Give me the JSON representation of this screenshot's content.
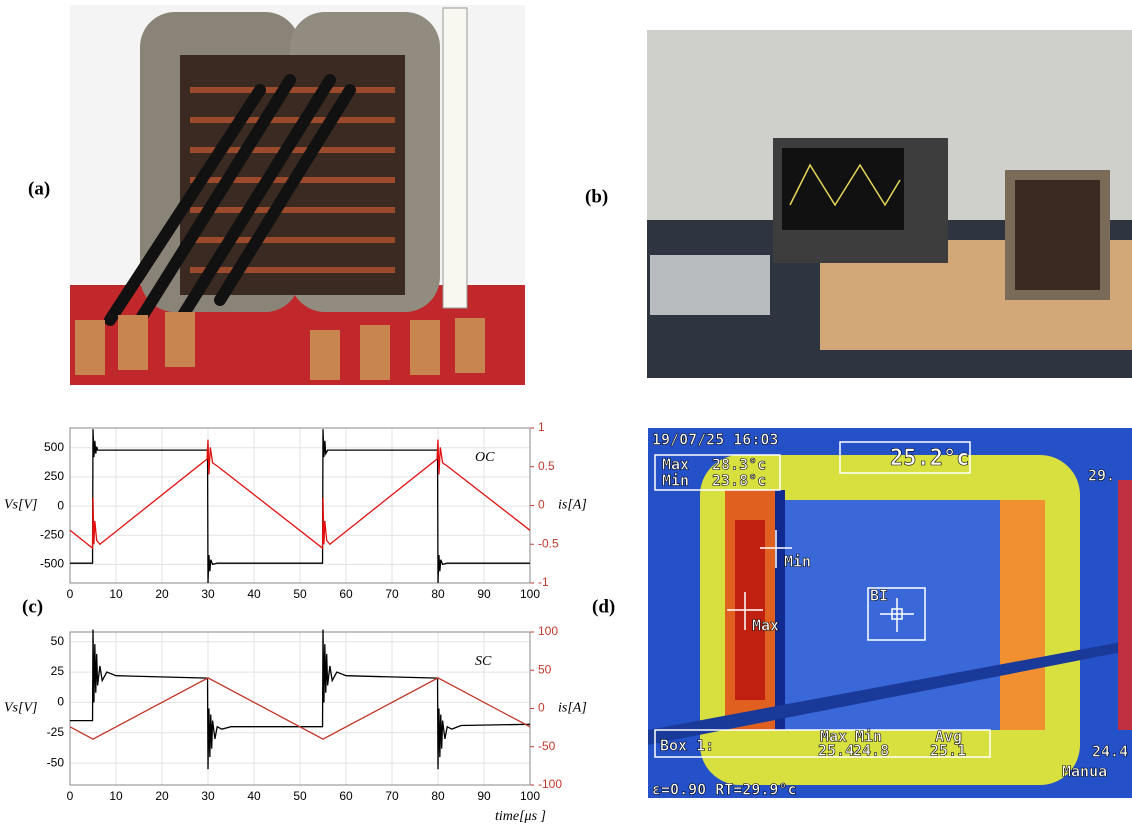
{
  "panels": {
    "a": "(a)",
    "b": "(b)",
    "c": "(c)",
    "d": "(d)"
  },
  "chart_data": [
    {
      "type": "line",
      "annotation": "OC",
      "y_label": "Vs[V]",
      "y2_label": "is[A]",
      "xlim": [
        0,
        100
      ],
      "xticks": [
        0,
        10,
        20,
        30,
        40,
        50,
        60,
        70,
        80,
        90,
        100
      ],
      "ylim": [
        -660,
        670
      ],
      "yticks": [
        500,
        250,
        0,
        -250,
        -500
      ],
      "y2lim": [
        -1,
        1
      ],
      "y2ticks": [
        1,
        0.5,
        0,
        -0.5,
        -1
      ],
      "y2color": "#c0392b",
      "grid": true,
      "series": [
        {
          "color": "#000000",
          "x": [
            0,
            4.9,
            5,
            5.2,
            5.4,
            5.6,
            5.8,
            6,
            7,
            29.9,
            30,
            30.2,
            30.4,
            30.6,
            31,
            32,
            54.9,
            55,
            55.2,
            55.4,
            55.6,
            56,
            57,
            79.9,
            80,
            80.2,
            80.4,
            80.6,
            81,
            82,
            100
          ],
          "values": [
            -490,
            -490,
            660,
            420,
            560,
            450,
            510,
            480,
            480,
            480,
            -660,
            -420,
            -560,
            -460,
            -500,
            -490,
            -490,
            660,
            420,
            560,
            450,
            480,
            480,
            480,
            -660,
            -420,
            -560,
            -460,
            -500,
            -490,
            -490
          ]
        },
        {
          "color": "#e01010",
          "axis": "y2",
          "x": [
            0,
            4.9,
            5,
            5.2,
            5.4,
            5.8,
            6.5,
            29.8,
            30,
            30.2,
            30.5,
            31,
            32,
            54.9,
            55,
            55.2,
            55.4,
            55.8,
            56.5,
            79.8,
            80,
            80.2,
            80.5,
            81,
            82,
            100
          ],
          "values": [
            -0.32,
            -0.55,
            0.1,
            -0.5,
            -0.2,
            -0.45,
            -0.5,
            0.6,
            0.85,
            0.4,
            0.75,
            0.55,
            0.51,
            -0.55,
            0.1,
            -0.5,
            -0.2,
            -0.45,
            -0.5,
            0.6,
            0.85,
            0.4,
            0.75,
            0.55,
            0.51,
            -0.32
          ]
        }
      ]
    },
    {
      "type": "line",
      "annotation": "SC",
      "y_label": "Vs[V]",
      "y2_label": "is[A]",
      "x_label": "time[μs ]",
      "xlim": [
        0,
        100
      ],
      "xticks": [
        0,
        10,
        20,
        30,
        40,
        50,
        60,
        70,
        80,
        90,
        100
      ],
      "ylim": [
        -68,
        58
      ],
      "yticks": [
        50,
        25,
        0,
        -25,
        -50
      ],
      "y2lim": [
        -100,
        100
      ],
      "y2ticks": [
        100,
        50,
        0,
        -50,
        -100
      ],
      "y2color": "#c0392b",
      "grid": true,
      "series": [
        {
          "color": "#000000",
          "x": [
            0,
            4.9,
            5,
            5.2,
            5.4,
            5.6,
            5.8,
            6,
            6.5,
            7,
            8,
            10,
            29.9,
            30,
            30.2,
            30.4,
            30.6,
            30.8,
            31,
            31.5,
            32,
            33,
            35,
            54.9,
            55,
            55.2,
            55.4,
            55.6,
            55.8,
            56,
            56.5,
            57,
            58,
            60,
            79.9,
            80,
            80.2,
            80.4,
            80.6,
            80.8,
            81,
            81.5,
            82,
            83,
            85,
            100
          ],
          "values": [
            -15,
            -15,
            60,
            0,
            48,
            8,
            40,
            14,
            30,
            18,
            25,
            22,
            20,
            -55,
            -5,
            -45,
            -10,
            -38,
            -15,
            -30,
            -20,
            -22,
            -20,
            -20,
            60,
            0,
            48,
            8,
            40,
            14,
            30,
            18,
            25,
            22,
            20,
            -55,
            -5,
            -45,
            -10,
            -38,
            -15,
            -30,
            -20,
            -22,
            -19,
            -18
          ]
        },
        {
          "color": "#c0392b",
          "axis": "y2",
          "x": [
            0,
            5,
            30,
            55,
            80,
            100
          ],
          "values": [
            -24,
            -40,
            40,
            -40,
            40,
            -24
          ]
        }
      ]
    }
  ],
  "thermal": {
    "timestamp": "19/07/25 16:03",
    "spot": "25.2°c",
    "max_label": "Max",
    "max_value": "28.3°c",
    "min_label": "Min",
    "min_value": "23.8°c",
    "scale_top": "29.",
    "cursor_min": "Min",
    "cursor_max": "Max",
    "box_tag": "BI",
    "box_name": "Box 1:",
    "col_max": "Max",
    "col_min": "Min",
    "col_avg": "Avg",
    "box_max": "25.4",
    "box_min": "24.8",
    "box_avg": "25.1",
    "scale_bottom": "24.4",
    "mode": "Manua",
    "footer": "ε=0.90 RT=29.9°c"
  }
}
